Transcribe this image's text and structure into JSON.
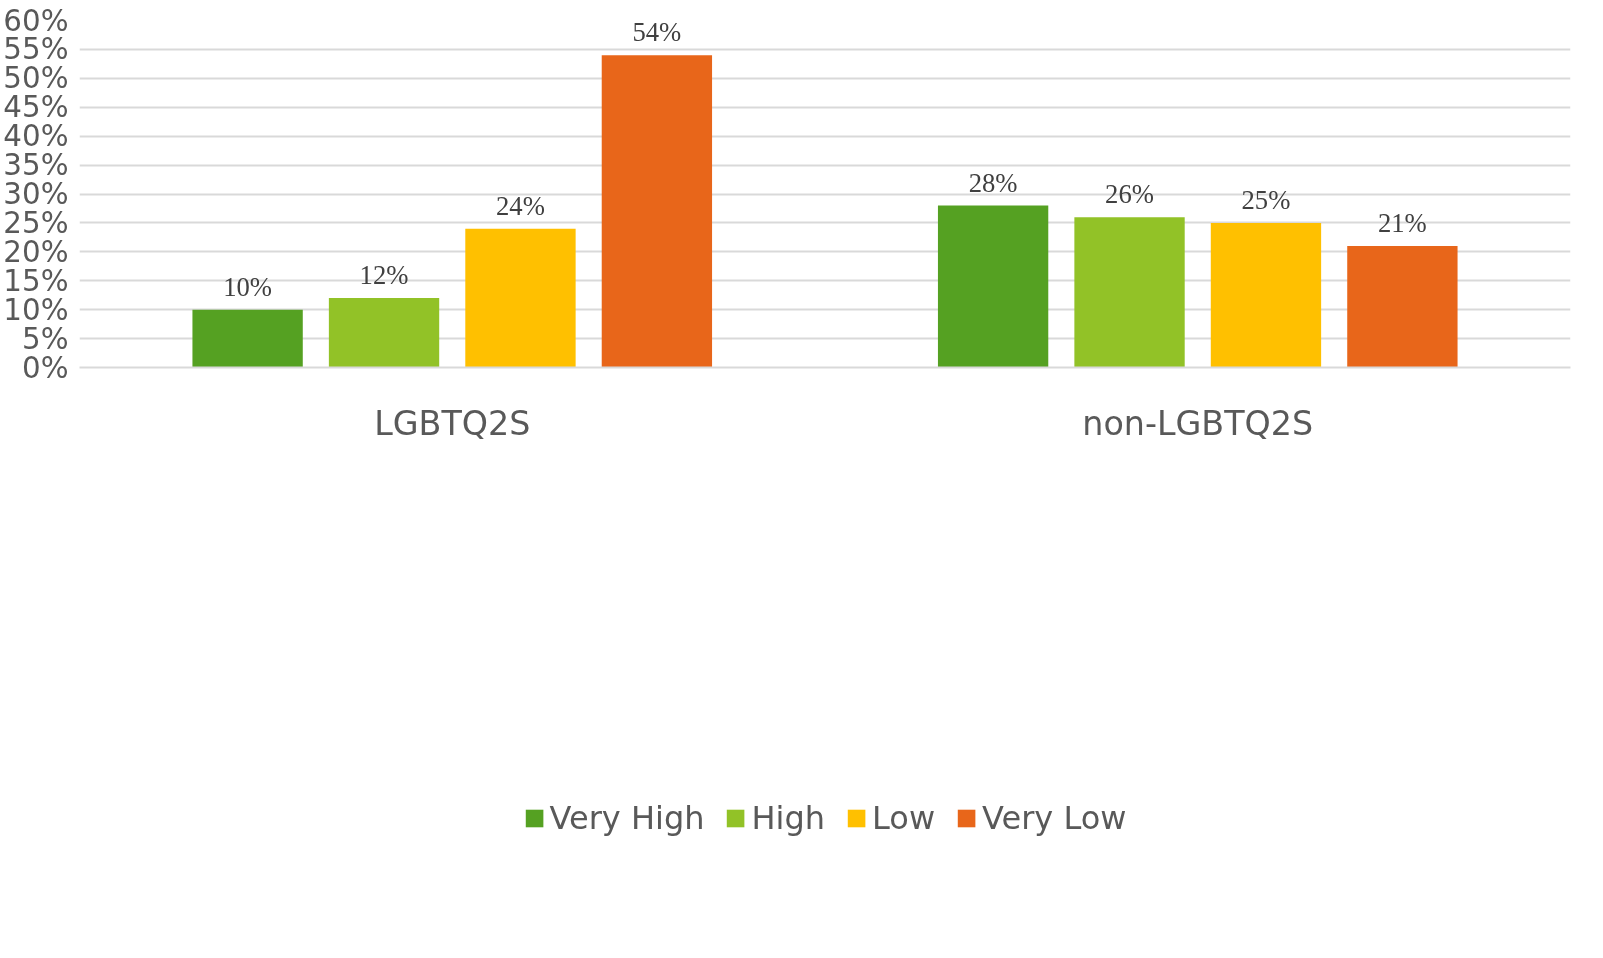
{
  "chart_data": {
    "type": "bar",
    "categories": [
      "LGBTQ2S",
      "non-LGBTQ2S"
    ],
    "series": [
      {
        "name": "Very High",
        "color": "#55a122",
        "values": [
          10,
          28
        ],
        "value_labels": [
          "10%",
          "28%"
        ]
      },
      {
        "name": "High",
        "color": "#92c227",
        "values": [
          12,
          26
        ],
        "value_labels": [
          "12%",
          "26%"
        ]
      },
      {
        "name": "Low",
        "color": "#ffc000",
        "values": [
          24,
          25
        ],
        "value_labels": [
          "24%",
          "25%"
        ]
      },
      {
        "name": "Very Low",
        "color": "#e8661a",
        "values": [
          54,
          21
        ],
        "value_labels": [
          "54%",
          "21%"
        ]
      }
    ],
    "ylim": [
      0,
      60
    ],
    "yticks": [
      {
        "value": 0,
        "label": "0%"
      },
      {
        "value": 5,
        "label": "5%"
      },
      {
        "value": 10,
        "label": "10%"
      },
      {
        "value": 15,
        "label": "15%"
      },
      {
        "value": 20,
        "label": "20%"
      },
      {
        "value": 25,
        "label": "25%"
      },
      {
        "value": 30,
        "label": "30%"
      },
      {
        "value": 35,
        "label": "35%"
      },
      {
        "value": 40,
        "label": "40%"
      },
      {
        "value": 45,
        "label": "45%"
      },
      {
        "value": 50,
        "label": "50%"
      },
      {
        "value": 55,
        "label": "55%"
      },
      {
        "value": 60,
        "label": "60%"
      }
    ],
    "grid": "y",
    "legend": "bottom"
  }
}
